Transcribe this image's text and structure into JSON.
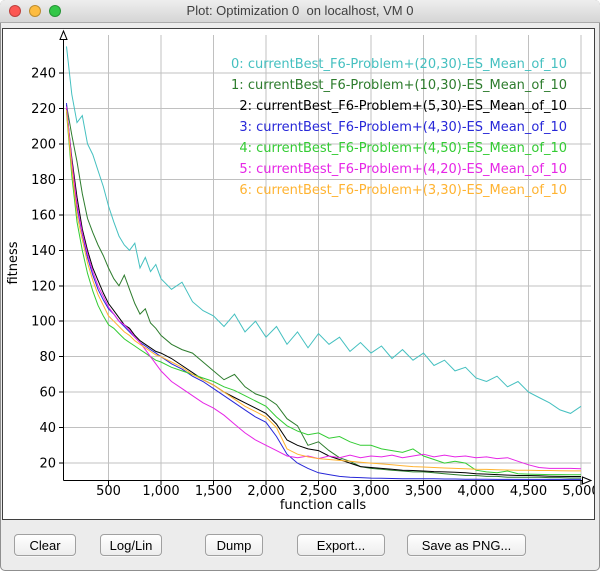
{
  "window": {
    "title": "Plot: Optimization 0  on localhost, VM 0",
    "traffic_lights": [
      {
        "name": "close-button",
        "color": "#fc5753"
      },
      {
        "name": "minimize-button",
        "color": "#fdbc40"
      },
      {
        "name": "zoom-button",
        "color": "#33c748"
      }
    ]
  },
  "buttons": [
    {
      "name": "clear-button",
      "label": "Clear"
    },
    {
      "name": "log-lin-button",
      "label": "Log/Lin"
    },
    {
      "name": "dump-button",
      "label": "Dump"
    },
    {
      "name": "export-button",
      "label": "Export..."
    },
    {
      "name": "save-as-png-button",
      "label": "Save as PNG..."
    }
  ],
  "chart_data": {
    "type": "line",
    "title": "",
    "xlabel": "function calls",
    "ylabel": "fitness",
    "grid": true,
    "grid_color": "#c0c0c0",
    "axis_color": "#000000",
    "legend_position": "top-right",
    "xlim": [
      0,
      5100
    ],
    "ylim": [
      10,
      262
    ],
    "x_ticks": [
      500,
      1000,
      1500,
      2000,
      2500,
      3000,
      3500,
      4000,
      4500,
      5000
    ],
    "x_tick_labels": [
      "500",
      "1,000",
      "1,500",
      "2,000",
      "2,500",
      "3,000",
      "3,500",
      "4,000",
      "4,500",
      "5,000"
    ],
    "y_ticks": [
      20,
      40,
      60,
      80,
      100,
      120,
      140,
      160,
      180,
      200,
      220,
      240
    ],
    "x": [
      100,
      150,
      200,
      250,
      300,
      350,
      400,
      450,
      500,
      550,
      600,
      650,
      700,
      750,
      800,
      850,
      900,
      950,
      1000,
      1100,
      1200,
      1300,
      1400,
      1500,
      1600,
      1700,
      1800,
      1900,
      2000,
      2100,
      2200,
      2300,
      2400,
      2500,
      2600,
      2700,
      2800,
      2900,
      3000,
      3100,
      3200,
      3300,
      3400,
      3500,
      3600,
      3700,
      3800,
      3900,
      4000,
      4100,
      4200,
      4300,
      4400,
      4500,
      4600,
      4700,
      4800,
      4900,
      5000
    ],
    "series": [
      {
        "name": "0: currentBest_F6-Problem+(20,30)-ES_Mean_of_10",
        "color": "#45c0c0",
        "values": [
          255,
          228,
          212,
          216,
          200,
          194,
          185,
          176,
          165,
          156,
          148,
          143,
          140,
          144,
          130,
          136,
          128,
          132,
          124,
          118,
          122,
          111,
          106,
          103,
          97,
          104,
          94,
          100,
          91,
          97,
          87,
          94,
          85,
          93,
          87,
          91,
          83,
          88,
          82,
          86,
          79,
          84,
          78,
          82,
          75,
          78,
          72,
          74,
          68,
          66,
          69,
          63,
          66,
          60,
          57,
          54,
          50,
          48,
          52
        ]
      },
      {
        "name": "1: currentBest_F6-Problem+(10,30)-ES_Mean_of_10",
        "color": "#2d7c2d",
        "values": [
          222,
          205,
          190,
          172,
          158,
          150,
          143,
          137,
          130,
          124,
          120,
          126,
          118,
          110,
          104,
          107,
          99,
          96,
          92,
          87,
          84,
          82,
          77,
          72,
          67,
          70,
          63,
          59,
          57,
          53,
          45,
          41,
          30,
          32,
          27,
          23,
          21,
          18,
          17,
          16.5,
          16,
          15.5,
          15,
          15,
          14.5,
          14,
          13.5,
          13,
          13,
          12.5,
          12.5,
          12,
          12,
          12,
          12,
          11.8,
          11.8,
          11.6,
          11.6
        ]
      },
      {
        "name": "2: currentBest_F6-Problem+(5,30)-ES_Mean_of_10",
        "color": "#000000",
        "values": [
          220,
          192,
          170,
          152,
          140,
          130,
          123,
          116,
          110,
          106,
          102,
          98,
          96,
          92,
          89,
          87,
          85,
          83,
          82,
          79,
          75,
          71,
          67,
          64,
          60,
          57,
          54,
          51,
          48,
          42,
          33,
          30,
          28,
          27,
          24,
          22,
          20,
          18,
          17.5,
          17,
          16.5,
          16,
          15.8,
          15.5,
          15.2,
          15,
          14.8,
          14.5,
          14,
          13.8,
          13.5,
          13.2,
          13,
          13,
          12.8,
          12.6,
          12.5,
          12.4,
          12.4
        ]
      },
      {
        "name": "3: currentBest_F6-Problem+(4,30)-ES_Mean_of_10",
        "color": "#2727d8",
        "values": [
          223,
          188,
          164,
          149,
          136,
          126,
          118,
          112,
          107,
          104,
          100,
          97,
          94,
          91,
          88,
          86,
          84,
          82,
          80,
          76,
          73,
          69,
          66,
          62,
          58,
          54,
          50,
          46,
          43,
          35,
          25,
          20,
          17,
          14.5,
          13.5,
          12.5,
          12,
          11.8,
          11.5,
          11.4,
          11.3,
          11.2,
          11.2,
          11.1,
          11.1,
          11,
          11,
          10.9,
          10.9,
          10.9,
          10.8,
          10.8,
          10.8,
          10.8,
          10.8,
          10.8,
          10.8,
          10.8,
          10.8
        ]
      },
      {
        "name": "4: currentBest_F6-Problem+(4,50)-ES_Mean_of_10",
        "color": "#33cc33",
        "values": [
          218,
          182,
          156,
          140,
          127,
          117,
          109,
          103,
          98,
          96,
          93,
          90,
          88,
          86,
          84,
          82,
          80,
          78,
          77,
          74,
          72,
          70,
          68,
          66,
          63,
          61,
          58,
          55,
          52,
          46,
          41,
          38,
          36,
          37,
          34,
          35,
          32,
          30,
          30,
          28,
          27,
          26,
          28,
          24,
          22,
          20,
          21,
          20,
          16,
          15,
          14.5,
          15.5,
          14,
          13.8,
          13.6,
          13.5,
          13.5,
          13.4,
          13.4
        ]
      },
      {
        "name": "5: currentBest_F6-Problem+(4,20)-ES_Mean_of_10",
        "color": "#e626e6",
        "values": [
          221,
          190,
          166,
          150,
          138,
          128,
          120,
          114,
          108,
          104,
          100,
          98,
          95,
          91,
          88,
          84,
          80,
          76,
          72,
          66,
          62,
          58,
          54,
          51,
          47,
          42,
          37,
          33,
          30,
          27,
          24,
          23,
          24,
          22.5,
          24,
          23,
          24.5,
          23,
          24,
          23.5,
          24.5,
          23,
          24,
          25,
          23.5,
          24.5,
          23.5,
          24,
          23,
          23.5,
          22.5,
          23,
          21,
          19,
          17.5,
          17,
          17,
          17,
          16.8
        ]
      },
      {
        "name": "6: currentBest_F6-Problem+(3,30)-ES_Mean_of_10",
        "color": "#ffb331",
        "values": [
          219,
          186,
          160,
          146,
          133,
          123,
          115,
          109,
          103,
          100,
          97,
          94,
          92,
          89,
          87,
          85,
          83,
          81,
          80,
          77,
          74,
          70,
          67,
          64,
          60,
          56,
          52,
          49,
          46,
          40,
          28,
          25,
          23.5,
          22.5,
          22,
          21.5,
          21,
          20.5,
          20,
          19.5,
          19,
          18.5,
          18,
          17.8,
          17.5,
          17.2,
          17,
          16.8,
          16.5,
          16.4,
          16.2,
          16.1,
          16,
          15.9,
          15.8,
          15.8,
          15.7,
          15.6,
          15.6
        ]
      }
    ]
  }
}
